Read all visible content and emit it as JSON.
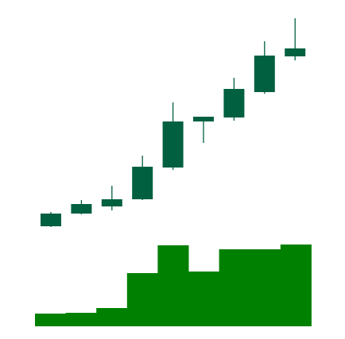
{
  "chart_data": {
    "type": "candlestick",
    "open": [
      137,
      153,
      162,
      171,
      211,
      269,
      274,
      306,
      351
    ],
    "high": [
      155,
      170,
      188,
      226,
      293,
      275,
      324,
      370,
      399
    ],
    "low": [
      136,
      152,
      157,
      170,
      208,
      242,
      270,
      304,
      346
    ],
    "close": [
      153,
      165,
      171,
      212,
      269,
      275,
      310,
      352,
      361
    ],
    "volume": [
      16,
      17,
      23,
      67,
      102,
      69,
      97,
      97,
      103
    ],
    "color": "#00603f",
    "volume_color": "#008000",
    "ylim": [
      0,
      422
    ],
    "y2lim": [
      0,
      411
    ]
  }
}
